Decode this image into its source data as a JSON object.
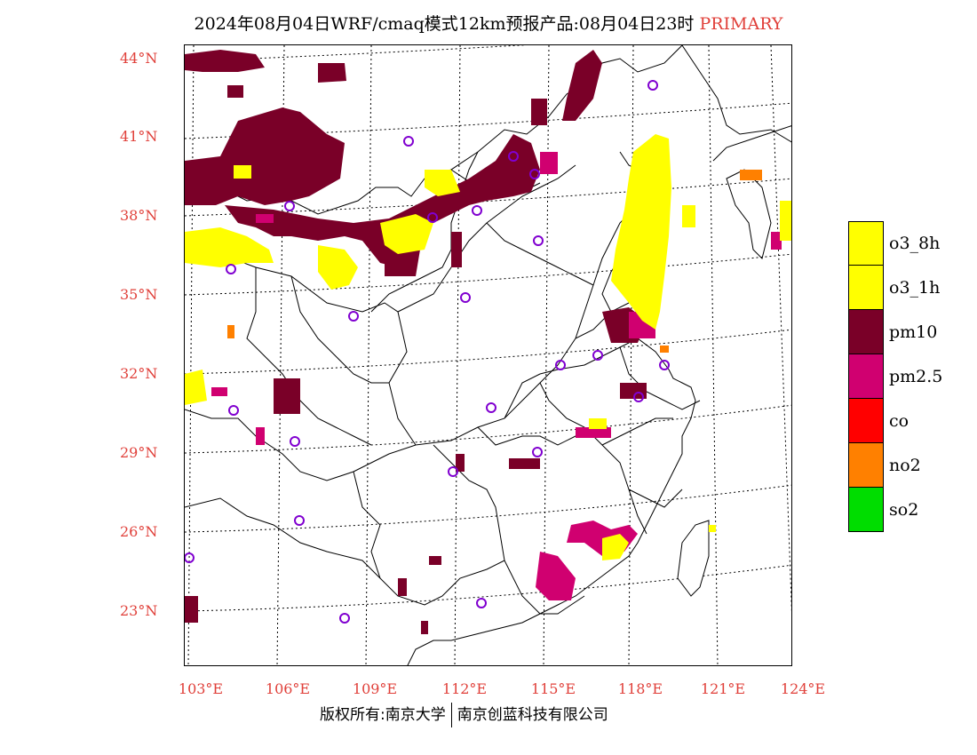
{
  "title": {
    "main": "2024年08月04日WRF/cmaq模式12km预报产品:08月04日23时",
    "tag": "PRIMARY"
  },
  "axes": {
    "lat_labels": [
      "44°N",
      "41°N",
      "38°N",
      "35°N",
      "32°N",
      "29°N",
      "26°N",
      "23°N"
    ],
    "lon_labels": [
      "103°E",
      "106°E",
      "109°E",
      "112°E",
      "115°E",
      "118°E",
      "121°E",
      "124°E"
    ]
  },
  "legend": {
    "items": [
      {
        "label": "o3_8h",
        "color": "#ffff00"
      },
      {
        "label": "o3_1h",
        "color": "#ffff00"
      },
      {
        "label": "pm10",
        "color": "#7a0028"
      },
      {
        "label": "pm2.5",
        "color": "#d00070"
      },
      {
        "label": "co",
        "color": "#ff0000"
      },
      {
        "label": "no2",
        "color": "#ff8000"
      },
      {
        "label": "so2",
        "color": "#00dd00"
      }
    ]
  },
  "footer": {
    "left": "版权所有:南京大学",
    "right": "南京创蓝科技有限公司"
  },
  "colors": {
    "o3": "#ffff00",
    "pm10": "#7a0028",
    "pm25": "#d00070",
    "no2": "#ff8000",
    "station": "#8000d0",
    "label": "#e0403a"
  }
}
